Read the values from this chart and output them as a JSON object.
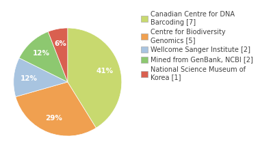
{
  "labels": [
    "Canadian Centre for DNA\nBarcoding [7]",
    "Centre for Biodiversity\nGenomics [5]",
    "Wellcome Sanger Institute [2]",
    "Mined from GenBank, NCBI [2]",
    "National Science Museum of\nKorea [1]"
  ],
  "values": [
    7,
    5,
    2,
    2,
    1
  ],
  "colors": [
    "#c8d96f",
    "#f0a050",
    "#a8c4e0",
    "#8dc870",
    "#d96050"
  ],
  "background_color": "#ffffff",
  "text_color": "#404040",
  "pct_fontsize": 7.5,
  "legend_fontsize": 7.0
}
